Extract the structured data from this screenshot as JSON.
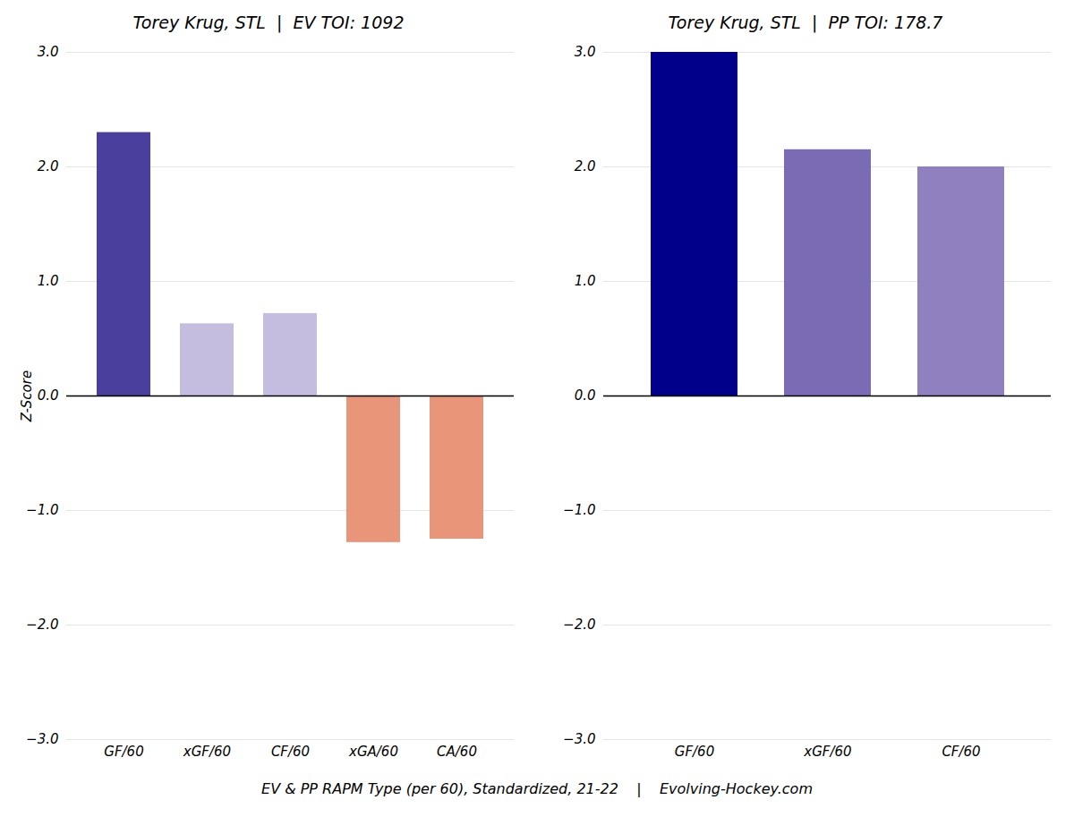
{
  "chart_data": [
    {
      "type": "bar",
      "title": "Torey Krug, STL  |  EV TOI: 1092",
      "categories": [
        "GF/60",
        "xGF/60",
        "CF/60",
        "xGA/60",
        "CA/60"
      ],
      "values": [
        2.3,
        0.63,
        0.72,
        -1.28,
        -1.25
      ],
      "colors": [
        "#4B3F9E",
        "#C5BDE0",
        "#C5BDE0",
        "#E8957A",
        "#E8957A"
      ],
      "ylabel": "Z-Score",
      "ylim": [
        -3,
        3
      ],
      "yticks": [
        -3,
        -2,
        -1,
        0,
        1,
        2,
        3
      ],
      "grid": true
    },
    {
      "type": "bar",
      "title": "Torey Krug, STL  |  PP TOI: 178.7",
      "categories": [
        "GF/60",
        "xGF/60",
        "CF/60"
      ],
      "values": [
        3.0,
        2.15,
        2.0
      ],
      "colors": [
        "#00008B",
        "#7B6BB5",
        "#9080C0"
      ],
      "ylim": [
        -3,
        3
      ],
      "yticks": [
        -3,
        -2,
        -1,
        0,
        1,
        2,
        3
      ],
      "grid": true
    }
  ],
  "caption": "EV & PP RAPM Type (per 60), Standardized, 21-22    |    Evolving-Hockey.com"
}
